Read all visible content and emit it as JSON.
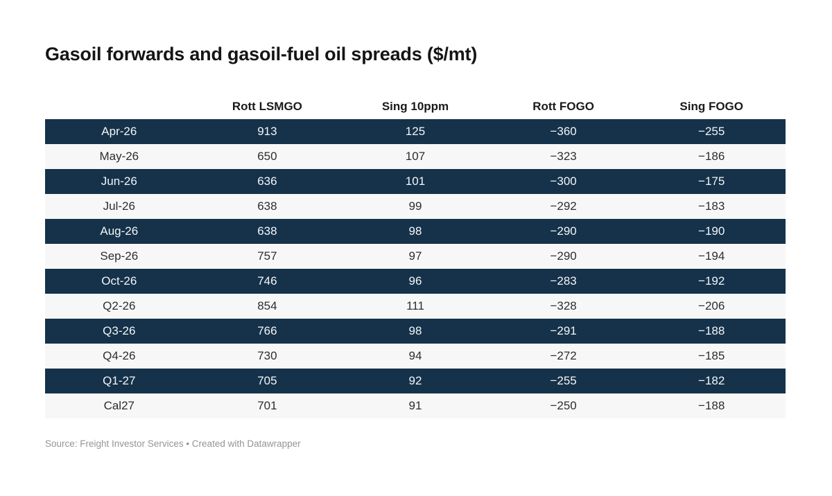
{
  "title": "Gasoil forwards and gasoil-fuel oil spreads ($/mt)",
  "table": {
    "columns": [
      "",
      "Rott LSMGO",
      "Sing 10ppm",
      "Rott FOGO",
      "Sing FOGO"
    ],
    "rows": [
      {
        "label": "Apr-26",
        "values": [
          "913",
          "125",
          "−360",
          "−255"
        ]
      },
      {
        "label": "May-26",
        "values": [
          "650",
          "107",
          "−323",
          "−186"
        ]
      },
      {
        "label": "Jun-26",
        "values": [
          "636",
          "101",
          "−300",
          "−175"
        ]
      },
      {
        "label": "Jul-26",
        "values": [
          "638",
          "99",
          "−292",
          "−183"
        ]
      },
      {
        "label": "Aug-26",
        "values": [
          "638",
          "98",
          "−290",
          "−190"
        ]
      },
      {
        "label": "Sep-26",
        "values": [
          "757",
          "97",
          "−290",
          "−194"
        ]
      },
      {
        "label": "Oct-26",
        "values": [
          "746",
          "96",
          "−283",
          "−192"
        ]
      },
      {
        "label": "Q2-26",
        "values": [
          "854",
          "111",
          "−328",
          "−206"
        ]
      },
      {
        "label": "Q3-26",
        "values": [
          "766",
          "98",
          "−291",
          "−188"
        ]
      },
      {
        "label": "Q4-26",
        "values": [
          "730",
          "94",
          "−272",
          "−185"
        ]
      },
      {
        "label": "Q1-27",
        "values": [
          "705",
          "92",
          "−255",
          "−182"
        ]
      },
      {
        "label": "Cal27",
        "values": [
          "701",
          "91",
          "−250",
          "−188"
        ]
      }
    ]
  },
  "footer": {
    "text": "Source: Freight Investor Services • Created with Datawrapper"
  },
  "colors": {
    "dark_row_bg": "#16324a",
    "dark_row_text": "#f2f6f9",
    "light_row_bg": "#f7f7f7",
    "light_row_text": "#2d2d2d",
    "title_text": "#151515",
    "footer_text": "#949494"
  },
  "chart_data": {
    "type": "table",
    "title": "Gasoil forwards and gasoil-fuel oil spreads ($/mt)",
    "categories": [
      "Apr-26",
      "May-26",
      "Jun-26",
      "Jul-26",
      "Aug-26",
      "Sep-26",
      "Oct-26",
      "Q2-26",
      "Q3-26",
      "Q4-26",
      "Q1-27",
      "Cal27"
    ],
    "series": [
      {
        "name": "Rott LSMGO",
        "values": [
          913,
          650,
          636,
          638,
          638,
          757,
          746,
          854,
          766,
          730,
          705,
          701
        ]
      },
      {
        "name": "Sing 10ppm",
        "values": [
          125,
          107,
          101,
          99,
          98,
          97,
          96,
          111,
          98,
          94,
          92,
          91
        ]
      },
      {
        "name": "Rott FOGO",
        "values": [
          -360,
          -323,
          -300,
          -292,
          -290,
          -290,
          -283,
          -328,
          -291,
          -272,
          -255,
          -250
        ]
      },
      {
        "name": "Sing FOGO",
        "values": [
          -255,
          -186,
          -175,
          -183,
          -190,
          -194,
          -192,
          -206,
          -188,
          -185,
          -182,
          -188
        ]
      }
    ],
    "source": "Freight Investor Services",
    "credit": "Created with Datawrapper",
    "layout": {
      "row_striping": "alternating starting dark",
      "value_alignment": "center"
    }
  }
}
